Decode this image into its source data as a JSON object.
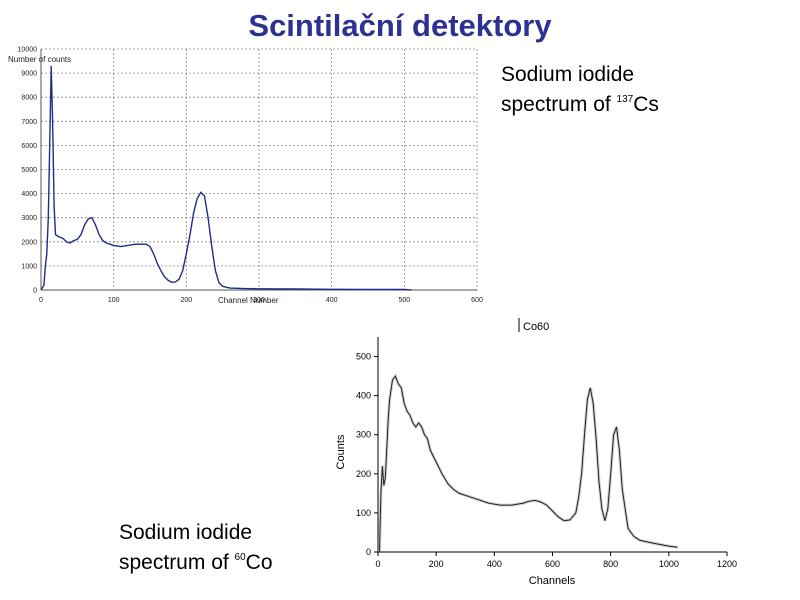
{
  "slide": {
    "title": "Scintilační detektory"
  },
  "captions": [
    {
      "prefix": "Sodium iodide",
      "line2": "spectrum of ",
      "sup": "137",
      "element": "Cs"
    },
    {
      "prefix": "Sodium iodide",
      "line2": "spectrum of ",
      "sup": "60",
      "element": "Co"
    }
  ],
  "colors": {
    "title": "#2e3192",
    "cs_line": "#1f2d8a",
    "co_line": "#222222",
    "grid": "#888888"
  },
  "chart_data": [
    {
      "type": "line",
      "title": "",
      "xlabel": "Channel Number",
      "ylabel": "Number of counts",
      "xlim": [
        0,
        600
      ],
      "ylim": [
        0,
        10000
      ],
      "grid": true,
      "x_ticks": [
        0,
        100,
        200,
        300,
        400,
        500,
        600
      ],
      "y_ticks": [
        0,
        1000,
        2000,
        3000,
        4000,
        5000,
        6000,
        7000,
        8000,
        9000,
        10000
      ],
      "series": [
        {
          "x": [
            0,
            4,
            6,
            8,
            10,
            12,
            14,
            16,
            18,
            20,
            25,
            30,
            35,
            40,
            45,
            50,
            55,
            60,
            65,
            70,
            75,
            80,
            85,
            90,
            95,
            100,
            110,
            120,
            130,
            140,
            145,
            150,
            155,
            160,
            165,
            170,
            175,
            180,
            185,
            190,
            195,
            200,
            205,
            210,
            215,
            220,
            225,
            230,
            235,
            240,
            245,
            250,
            260,
            280,
            300,
            350,
            400,
            450,
            500,
            510
          ],
          "y": [
            0,
            200,
            1000,
            1500,
            3000,
            6000,
            9300,
            7000,
            3500,
            2300,
            2200,
            2150,
            2000,
            1950,
            2050,
            2100,
            2300,
            2700,
            2950,
            3000,
            2700,
            2300,
            2050,
            1950,
            1900,
            1850,
            1800,
            1850,
            1900,
            1900,
            1900,
            1800,
            1500,
            1100,
            800,
            550,
            400,
            320,
            330,
            450,
            800,
            1500,
            2300,
            3200,
            3800,
            4050,
            3900,
            3000,
            1800,
            800,
            300,
            150,
            80,
            60,
            50,
            40,
            30,
            25,
            20,
            0
          ]
        }
      ]
    },
    {
      "type": "line",
      "title": "",
      "legend": "Co60",
      "xlabel": "Channels",
      "ylabel": "Counts",
      "xlim": [
        0,
        1200
      ],
      "ylim": [
        0,
        550
      ],
      "grid": false,
      "x_ticks": [
        0,
        200,
        400,
        600,
        800,
        1000,
        1200
      ],
      "y_ticks": [
        0,
        100,
        200,
        300,
        400,
        500
      ],
      "series": [
        {
          "x": [
            5,
            10,
            15,
            20,
            25,
            30,
            35,
            40,
            50,
            60,
            70,
            80,
            90,
            100,
            110,
            120,
            130,
            140,
            150,
            160,
            170,
            180,
            200,
            220,
            240,
            260,
            280,
            300,
            340,
            380,
            420,
            460,
            500,
            520,
            540,
            560,
            580,
            600,
            620,
            640,
            660,
            680,
            690,
            700,
            710,
            720,
            730,
            740,
            750,
            760,
            770,
            780,
            790,
            800,
            810,
            820,
            830,
            840,
            860,
            880,
            900,
            950,
            1000,
            1030
          ],
          "y": [
            0,
            150,
            220,
            170,
            190,
            260,
            340,
            390,
            440,
            450,
            430,
            420,
            380,
            360,
            350,
            330,
            320,
            330,
            320,
            300,
            290,
            260,
            230,
            200,
            175,
            160,
            150,
            145,
            135,
            125,
            120,
            120,
            125,
            130,
            132,
            128,
            120,
            105,
            90,
            80,
            82,
            100,
            140,
            200,
            300,
            390,
            420,
            380,
            290,
            180,
            110,
            80,
            110,
            200,
            300,
            320,
            260,
            160,
            60,
            40,
            30,
            22,
            15,
            12
          ]
        }
      ]
    }
  ]
}
